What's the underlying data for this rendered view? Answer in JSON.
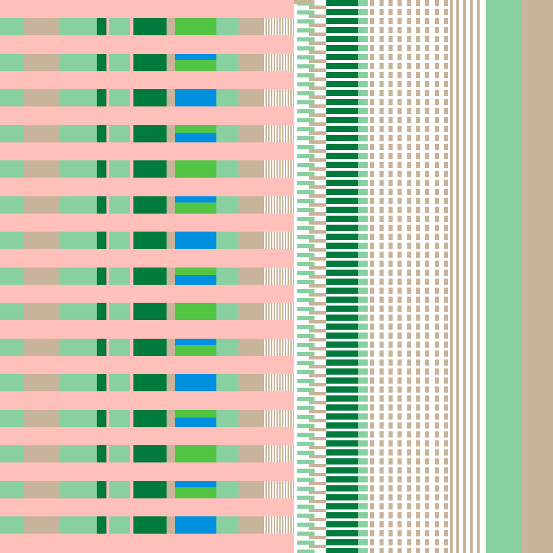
{
  "palette": {
    "pink": "#ffc0bb",
    "mint": "#88d0a0",
    "beige": "#c8b49a",
    "dark_green": "#007a3d",
    "bright_green": "#52c544",
    "blue": "#0090e0",
    "white": "#ffffff"
  },
  "pattern": {
    "description_visible_text": "",
    "bright_cell_sequence": [
      "green",
      "blue-green",
      "blue",
      "green-blue",
      "green",
      "blue-green",
      "blue",
      "green-blue",
      "green",
      "blue-green",
      "blue",
      "green-blue",
      "green",
      "blue-green",
      "blue"
    ]
  }
}
